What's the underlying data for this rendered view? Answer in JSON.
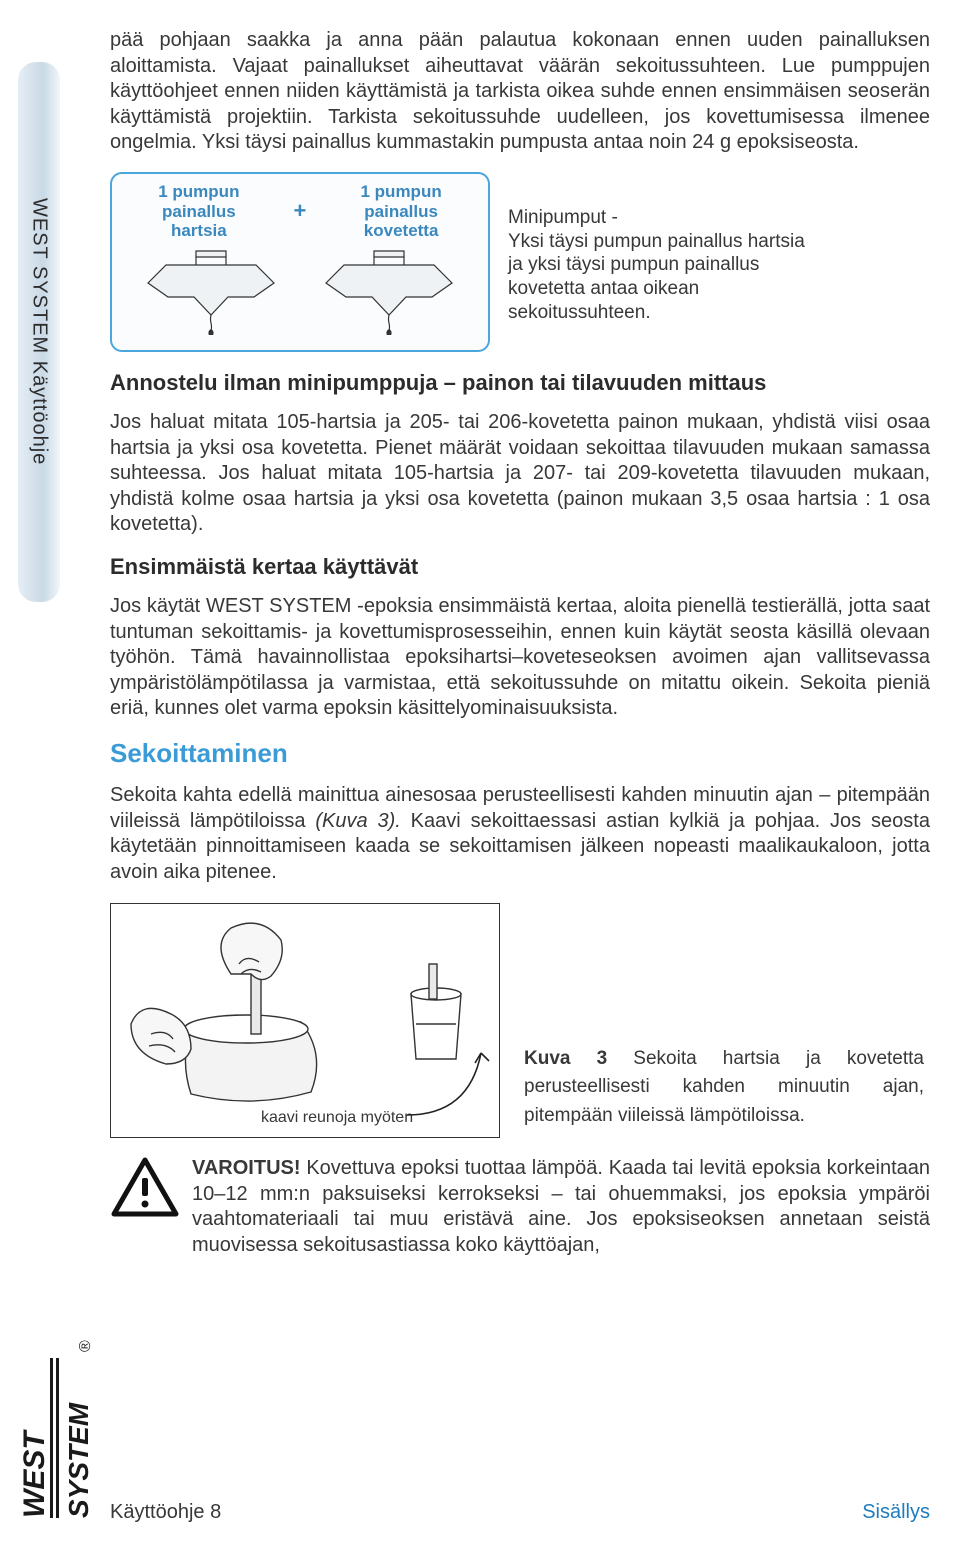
{
  "sideTab": "WEST SYSTEM Käyttöohje",
  "para1": "pää pohjaan saakka ja anna pään palautua kokonaan ennen uuden painalluksen aloittamista. Vajaat painallukset aiheuttavat väärän sekoitussuhteen. Lue pumppujen käyttöohjeet ennen niiden käyttämistä ja tarkista oikea suhde ennen ensimmäisen seoserän käyttämistä projektiin. Tarkista sekoitussuhde uudelleen, jos kovettumisessa ilmenee ongelmia. Yksi täysi painallus kummastakin pumpusta antaa noin 24 g epoksiseosta.",
  "pumpBox": {
    "label1": "1 pumpun painallus hartsia",
    "plus": "+",
    "label2": "1 pumpun painallus kovetetta",
    "borderColor": "#4aa6dd",
    "labelColor": "#3a88be",
    "strokeColor": "#333333"
  },
  "pumpCaption": "Minipumput -\nYksi täysi pumpun painallus hartsia ja yksi täysi pumpun painallus kovetetta antaa oikean sekoitussuhteen.",
  "h_annostelu": "Annostelu ilman minipumppuja – painon tai tilavuuden mittaus",
  "para2": "Jos haluat mitata 105-hartsia ja 205- tai 206-kovetetta painon mukaan, yhdistä viisi osaa hartsia ja yksi osa kovetetta. Pienet määrät voidaan sekoittaa tilavuuden mukaan samassa suhteessa. Jos haluat mitata 105-hartsia ja 207- tai 209-kovetetta tilavuuden mukaan, yhdistä kolme osaa hartsia ja yksi osa kovetetta (painon mukaan 3,5 osaa hartsia : 1 osa kovetetta).",
  "h_ensimm": "Ensimmäistä kertaa käyttävät",
  "para3": "Jos käytät WEST SYSTEM -epoksia ensimmäistä kertaa, aloita pienellä testierällä, jotta saat tuntuman sekoittamis- ja kovettumisprosesseihin, ennen kuin käytät seosta käsillä olevaan työhön. Tämä havainnollistaa epoksihartsi–koveteseoksen avoimen ajan vallitsevassa ympäristölämpötilassa ja varmistaa, että sekoitussuhde on mitattu oikein. Sekoita pieniä eriä, kunnes olet varma epoksin käsittelyominaisuuksista.",
  "h_sekoitt": "Sekoittaminen",
  "para4_a": "Sekoita kahta edellä mainittua ainesosaa perusteellisesti kahden minuutin ajan – pitempään viileissä lämpötiloissa ",
  "para4_i": "(Kuva 3).",
  "para4_b": " Kaavi sekoittaessasi astian kylkiä ja pohjaa. Jos seosta käytetään pinnoittamiseen kaada se sekoittamisen jälkeen nopeasti maalikaukaloon, jotta avoin aika pitenee.",
  "mixLabel": "kaavi reunoja myöten",
  "mixCaption_a": "Kuva 3",
  "mixCaption_b": " Sekoita hartsia ja kovetetta perusteellisesti kahden minuutin ajan, pitempään viileissä lämpötiloissa.",
  "warnBold": "VAROITUS!",
  "warnText": " Kovettuva epoksi tuottaa lämpöä. Kaada tai levitä epoksia korkeintaan 10–12 mm:n paksuiseksi kerrokseksi – tai ohuemmaksi, jos epoksia ympäröi vaahtomateriaali tai muu eristävä aine. Jos epoksiseoksen annetaan seistä muovisessa sekoitusastiassa koko käyttöajan,",
  "footer": {
    "left": "Käyttöohje 8",
    "right": "Sisällys"
  },
  "logo": {
    "line1": "WEST",
    "line2": "SYSTEM"
  },
  "colors": {
    "text": "#383838",
    "headingBlue": "#3a9bd6",
    "link": "#1d7bbf",
    "stroke": "#333333"
  }
}
